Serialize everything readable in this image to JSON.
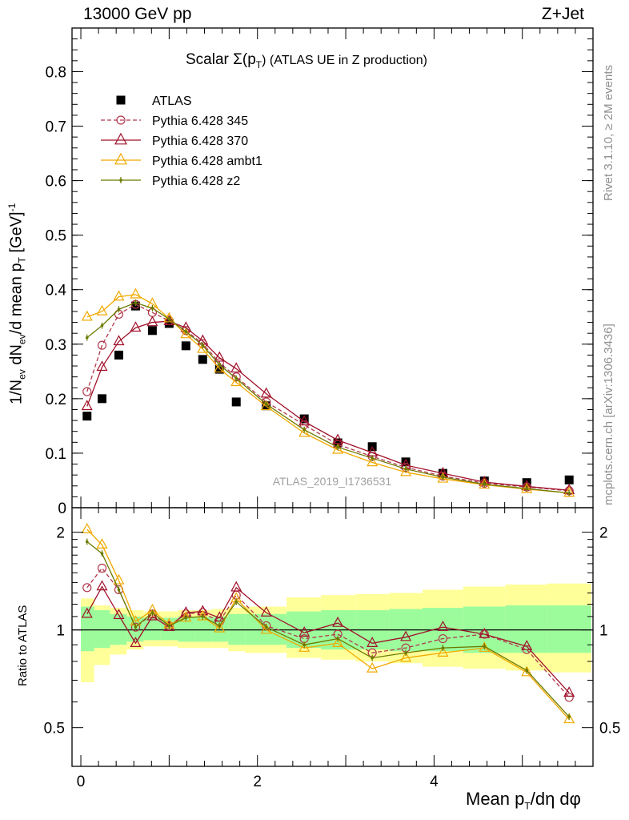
{
  "header": {
    "energy_label": "13000 GeV pp",
    "process_label": "Z+Jet"
  },
  "side_labels": {
    "rivet": "Rivet 3.1.10, ≥ 2M events",
    "mcplots": "mcplots.cern.ch [arXiv:1306.3436]"
  },
  "chart_data": [
    {
      "type": "scatter",
      "panel": "main",
      "title_prefix": "Scalar Σ(p",
      "title_sub": "T",
      "title_suffix": ") (ATLAS UE in Z production)",
      "ylabel": "1/N_ev dN_ev/d mean p_T [GeV]^-1",
      "xlabel": "Mean p_T/dη dφ",
      "watermark": "ATLAS_2019_I1736531",
      "xlim": [
        -0.1,
        5.8
      ],
      "ylim": [
        0,
        0.88
      ],
      "y_ticks": [
        "0",
        "0.1",
        "0.2",
        "0.3",
        "0.4",
        "0.5",
        "0.6",
        "0.7",
        "0.8"
      ],
      "x": [
        0.07,
        0.24,
        0.43,
        0.62,
        0.81,
        1.0,
        1.19,
        1.38,
        1.57,
        1.76,
        2.1,
        2.53,
        2.91,
        3.3,
        3.68,
        4.1,
        4.57,
        5.05,
        5.53
      ],
      "series": [
        {
          "name": "ATLAS",
          "style": "data",
          "color": "#000000",
          "values": [
            0.168,
            0.2,
            0.28,
            0.37,
            0.325,
            0.338,
            0.297,
            0.272,
            0.254,
            0.194,
            0.187,
            0.163,
            0.119,
            0.112,
            0.084,
            0.063,
            0.049,
            0.046,
            0.051
          ]
        },
        {
          "name": "Pythia 6.428 345",
          "style": "circle-dashed",
          "color": "#b0394d",
          "values": [
            0.213,
            0.298,
            0.355,
            0.373,
            0.358,
            0.343,
            0.325,
            0.301,
            0.266,
            0.24,
            0.194,
            0.152,
            0.116,
            0.094,
            0.074,
            0.058,
            0.045,
            0.038,
            0.031
          ]
        },
        {
          "name": "Pythia 6.428 370",
          "style": "triangle",
          "color": "#a0102a",
          "values": [
            0.186,
            0.258,
            0.305,
            0.33,
            0.34,
            0.342,
            0.33,
            0.306,
            0.275,
            0.255,
            0.209,
            0.158,
            0.124,
            0.101,
            0.078,
            0.063,
            0.047,
            0.039,
            0.032
          ]
        },
        {
          "name": "Pythia 6.428 ambt1",
          "style": "triangle",
          "color": "#f0a800",
          "values": [
            0.35,
            0.36,
            0.387,
            0.391,
            0.374,
            0.347,
            0.318,
            0.291,
            0.255,
            0.23,
            0.186,
            0.137,
            0.106,
            0.083,
            0.065,
            0.053,
            0.042,
            0.034,
            0.027
          ]
        },
        {
          "name": "Pythia 6.428 z2",
          "style": "dot",
          "color": "#6b7a00",
          "values": [
            0.312,
            0.334,
            0.364,
            0.376,
            0.366,
            0.346,
            0.323,
            0.298,
            0.262,
            0.237,
            0.19,
            0.143,
            0.111,
            0.091,
            0.071,
            0.056,
            0.043,
            0.035,
            0.027
          ]
        }
      ]
    },
    {
      "type": "line",
      "panel": "ratio",
      "ylabel": "Ratio to ATLAS",
      "xlim": [
        -0.1,
        5.8
      ],
      "ylim": [
        0.38,
        2.38
      ],
      "y_ticks": [
        "0.5",
        "1",
        "2"
      ],
      "x_ticks": [
        "0",
        "2",
        "4"
      ],
      "x": [
        0.07,
        0.24,
        0.43,
        0.62,
        0.81,
        1.0,
        1.19,
        1.38,
        1.57,
        1.76,
        2.1,
        2.53,
        2.91,
        3.3,
        3.68,
        4.1,
        4.57,
        5.05,
        5.53
      ],
      "band_edges": [
        0.0,
        0.15,
        0.33,
        0.52,
        0.71,
        0.9,
        1.1,
        1.29,
        1.48,
        1.67,
        1.86,
        2.33,
        2.72,
        3.11,
        3.49,
        3.87,
        4.33,
        4.81,
        5.28,
        5.78
      ],
      "band_inner": [
        [
          0.86,
          1.18
        ],
        [
          0.88,
          1.15
        ],
        [
          0.9,
          1.12
        ],
        [
          0.92,
          1.1
        ],
        [
          0.93,
          1.09
        ],
        [
          0.93,
          1.09
        ],
        [
          0.92,
          1.1
        ],
        [
          0.92,
          1.1
        ],
        [
          0.92,
          1.1
        ],
        [
          0.9,
          1.12
        ],
        [
          0.9,
          1.12
        ],
        [
          0.88,
          1.14
        ],
        [
          0.87,
          1.15
        ],
        [
          0.87,
          1.15
        ],
        [
          0.86,
          1.16
        ],
        [
          0.86,
          1.17
        ],
        [
          0.85,
          1.18
        ],
        [
          0.85,
          1.19
        ],
        [
          0.85,
          1.19
        ]
      ],
      "band_outer": [
        [
          0.69,
          1.25
        ],
        [
          0.78,
          1.19
        ],
        [
          0.84,
          1.17
        ],
        [
          0.87,
          1.15
        ],
        [
          0.89,
          1.14
        ],
        [
          0.89,
          1.14
        ],
        [
          0.88,
          1.15
        ],
        [
          0.88,
          1.15
        ],
        [
          0.88,
          1.16
        ],
        [
          0.86,
          1.17
        ],
        [
          0.85,
          1.18
        ],
        [
          0.82,
          1.26
        ],
        [
          0.81,
          1.28
        ],
        [
          0.8,
          1.29
        ],
        [
          0.79,
          1.3
        ],
        [
          0.77,
          1.33
        ],
        [
          0.76,
          1.36
        ],
        [
          0.75,
          1.38
        ],
        [
          0.74,
          1.39
        ]
      ],
      "series": [
        {
          "name": "Pythia 6.428 345",
          "style": "circle-dashed",
          "color": "#b0394d",
          "values": [
            1.35,
            1.55,
            1.33,
            1.02,
            1.12,
            1.03,
            1.12,
            1.13,
            1.06,
            1.28,
            1.03,
            0.94,
            0.97,
            0.85,
            0.88,
            0.94,
            0.97,
            0.87,
            0.62
          ]
        },
        {
          "name": "Pythia 6.428 370",
          "style": "triangle",
          "color": "#a0102a",
          "values": [
            1.12,
            1.36,
            1.11,
            0.91,
            1.1,
            1.02,
            1.13,
            1.14,
            1.09,
            1.35,
            1.13,
            0.98,
            1.05,
            0.91,
            0.95,
            1.02,
            0.97,
            0.89,
            0.64
          ]
        },
        {
          "name": "Pythia 6.428 ambt1",
          "style": "triangle",
          "color": "#f0a800",
          "values": [
            2.04,
            1.83,
            1.42,
            1.06,
            1.15,
            1.04,
            1.09,
            1.1,
            1.01,
            1.25,
            1.0,
            0.88,
            0.91,
            0.76,
            0.82,
            0.85,
            0.88,
            0.74,
            0.53
          ]
        },
        {
          "name": "Pythia 6.428 z2",
          "style": "dot",
          "color": "#6b7a00",
          "values": [
            1.87,
            1.72,
            1.33,
            1.02,
            1.13,
            1.03,
            1.09,
            1.1,
            1.03,
            1.22,
            1.02,
            0.9,
            0.94,
            0.82,
            0.85,
            0.88,
            0.89,
            0.75,
            0.54
          ]
        }
      ]
    }
  ]
}
